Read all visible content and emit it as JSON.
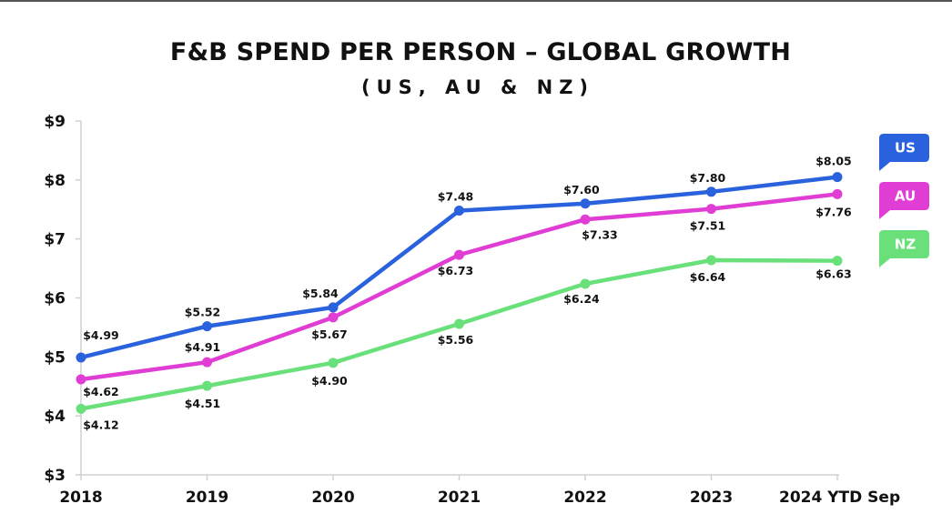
{
  "chart_data": {
    "type": "line",
    "title": "F&B SPEND PER PERSON – GLOBAL GROWTH",
    "subtitle": "(US, AU & NZ)",
    "categories": [
      "2018",
      "2019",
      "2020",
      "2021",
      "2022",
      "2023",
      "2024 YTD Sep"
    ],
    "ylim": [
      3,
      9
    ],
    "yticks": [
      "$9",
      "$8",
      "$7",
      "$6",
      "$5",
      "$4",
      "$3"
    ],
    "ytick_values": [
      9,
      8,
      7,
      6,
      5,
      4,
      3
    ],
    "grid": false,
    "legend_position": "right",
    "series": [
      {
        "name": "US",
        "color": "#2A62DE",
        "values": [
          4.99,
          5.52,
          5.84,
          7.48,
          7.6,
          7.8,
          8.05
        ],
        "labels": [
          "$4.99",
          "$5.52",
          "$5.84",
          "$7.48",
          "$7.60",
          "$7.80",
          "$8.05"
        ]
      },
      {
        "name": "AU",
        "color": "#E03DD4",
        "values": [
          4.62,
          4.91,
          5.67,
          6.73,
          7.33,
          7.51,
          7.76
        ],
        "labels": [
          "$4.62",
          "$4.91",
          "$5.67",
          "$6.73",
          "$7.33",
          "$7.51",
          "$7.76"
        ]
      },
      {
        "name": "NZ",
        "color": "#69E07A",
        "values": [
          4.12,
          4.51,
          4.9,
          5.56,
          6.24,
          6.64,
          6.63
        ],
        "labels": [
          "$4.12",
          "$4.51",
          "$4.90",
          "$5.56",
          "$6.24",
          "$6.64",
          "$6.63"
        ]
      }
    ]
  }
}
